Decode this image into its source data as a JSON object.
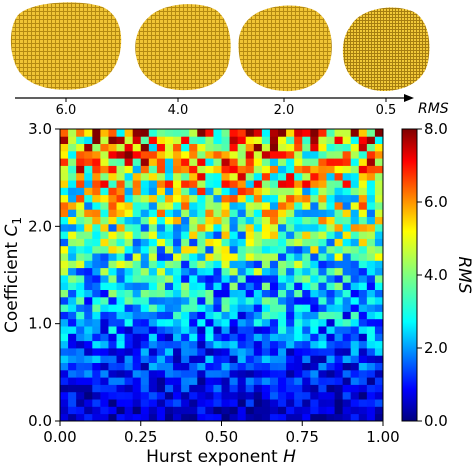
{
  "colors": {
    "particle_fill": "#e8b92c",
    "particle_edge": "#b48a12",
    "axis": "#000000"
  },
  "particles": {
    "rms_labels": [
      "6.0",
      "4.0",
      "2.0",
      "0.5"
    ],
    "axis_label": "RMS"
  },
  "chart_data": {
    "type": "heatmap",
    "xlabel": "Hurst exponent",
    "xlabel_symbol": "H",
    "ylabel": "Coefficient",
    "ylabel_symbol": "C",
    "ylabel_subscript": "1",
    "xlim": [
      0.0,
      1.0
    ],
    "ylim": [
      0.0,
      3.0
    ],
    "x_ticks": [
      "0.00",
      "0.25",
      "0.50",
      "0.75",
      "1.00"
    ],
    "y_ticks": [
      "0.0",
      "1.0",
      "2.0",
      "3.0"
    ],
    "x_bins": 40,
    "y_bins": 40,
    "trend": "RMS increases with coefficient C1; noisy variation across Hurst exponent H",
    "colorbar": {
      "label": "RMS",
      "range": [
        0.0,
        8.0
      ],
      "ticks": [
        "0.0",
        "2.0",
        "4.0",
        "6.0",
        "8.0"
      ],
      "colormap": "jet"
    }
  }
}
